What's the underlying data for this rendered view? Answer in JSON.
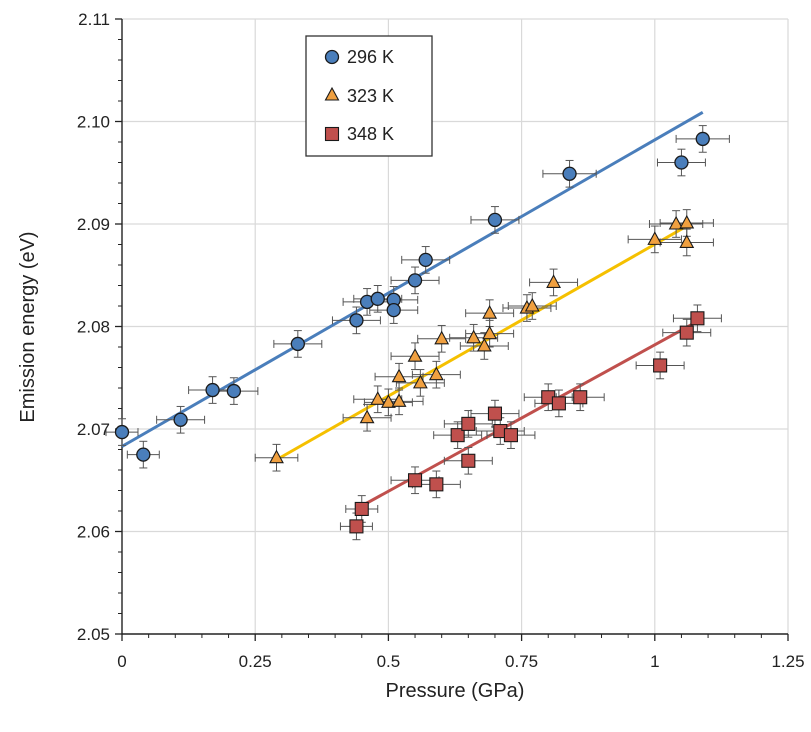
{
  "chart_data": {
    "type": "scatter",
    "title": "",
    "xlabel": "Pressure (GPa)",
    "ylabel": "Emission energy (eV)",
    "xlim": [
      0,
      1.25
    ],
    "ylim": [
      2.05,
      2.11
    ],
    "xticks": [
      0,
      0.25,
      0.5,
      0.75,
      1,
      1.25
    ],
    "xtick_labels": [
      "0",
      "0.25",
      "0.5",
      "0.75",
      "1",
      "1.25"
    ],
    "yticks": [
      2.05,
      2.06,
      2.07,
      2.08,
      2.09,
      2.1,
      2.11
    ],
    "ytick_labels": [
      "2.05",
      "2.06",
      "2.07",
      "2.08",
      "2.09",
      "2.10",
      "2.11"
    ],
    "grid": true,
    "legend": "top-left",
    "error_bars": true,
    "series": [
      {
        "name": "296 K",
        "marker": "circle",
        "color": "#4a7ebb",
        "line_color": "#4a7ebb",
        "points": [
          {
            "x": 0.0,
            "y": 2.0697,
            "xerr": 0.03,
            "yerr": 0.0013
          },
          {
            "x": 0.04,
            "y": 2.0675,
            "xerr": 0.03,
            "yerr": 0.0013
          },
          {
            "x": 0.11,
            "y": 2.0709,
            "xerr": 0.045,
            "yerr": 0.0013
          },
          {
            "x": 0.17,
            "y": 2.0738,
            "xerr": 0.045,
            "yerr": 0.0013
          },
          {
            "x": 0.21,
            "y": 2.0737,
            "xerr": 0.045,
            "yerr": 0.0013
          },
          {
            "x": 0.33,
            "y": 2.0783,
            "xerr": 0.045,
            "yerr": 0.0013
          },
          {
            "x": 0.44,
            "y": 2.0806,
            "xerr": 0.045,
            "yerr": 0.0013
          },
          {
            "x": 0.46,
            "y": 2.0824,
            "xerr": 0.045,
            "yerr": 0.0013
          },
          {
            "x": 0.48,
            "y": 2.0827,
            "xerr": 0.045,
            "yerr": 0.0013
          },
          {
            "x": 0.51,
            "y": 2.0826,
            "xerr": 0.045,
            "yerr": 0.0013
          },
          {
            "x": 0.51,
            "y": 2.0816,
            "xerr": 0.045,
            "yerr": 0.0013
          },
          {
            "x": 0.55,
            "y": 2.0845,
            "xerr": 0.045,
            "yerr": 0.0013
          },
          {
            "x": 0.57,
            "y": 2.0865,
            "xerr": 0.045,
            "yerr": 0.0013
          },
          {
            "x": 0.7,
            "y": 2.0904,
            "xerr": 0.045,
            "yerr": 0.0013
          },
          {
            "x": 0.84,
            "y": 2.0949,
            "xerr": 0.05,
            "yerr": 0.0013
          },
          {
            "x": 1.05,
            "y": 2.096,
            "xerr": 0.045,
            "yerr": 0.0013
          },
          {
            "x": 1.09,
            "y": 2.0983,
            "xerr": 0.05,
            "yerr": 0.0013
          }
        ],
        "fit": {
          "x": [
            0.0,
            1.09
          ],
          "y": [
            2.0683,
            2.1009
          ]
        }
      },
      {
        "name": "323 K",
        "marker": "triangle",
        "color": "#f0a040",
        "line_color": "#f5c000",
        "points": [
          {
            "x": 0.29,
            "y": 2.0672,
            "xerr": 0.04,
            "yerr": 0.0013
          },
          {
            "x": 0.46,
            "y": 2.0711,
            "xerr": 0.045,
            "yerr": 0.0013
          },
          {
            "x": 0.48,
            "y": 2.0729,
            "xerr": 0.045,
            "yerr": 0.0013
          },
          {
            "x": 0.5,
            "y": 2.0726,
            "xerr": 0.045,
            "yerr": 0.0013
          },
          {
            "x": 0.52,
            "y": 2.0727,
            "xerr": 0.045,
            "yerr": 0.0013
          },
          {
            "x": 0.52,
            "y": 2.0751,
            "xerr": 0.045,
            "yerr": 0.0013
          },
          {
            "x": 0.55,
            "y": 2.0771,
            "xerr": 0.045,
            "yerr": 0.0013
          },
          {
            "x": 0.56,
            "y": 2.0745,
            "xerr": 0.045,
            "yerr": 0.0013
          },
          {
            "x": 0.59,
            "y": 2.0753,
            "xerr": 0.045,
            "yerr": 0.0013
          },
          {
            "x": 0.6,
            "y": 2.0788,
            "xerr": 0.045,
            "yerr": 0.0013
          },
          {
            "x": 0.66,
            "y": 2.0789,
            "xerr": 0.045,
            "yerr": 0.0013
          },
          {
            "x": 0.68,
            "y": 2.0781,
            "xerr": 0.045,
            "yerr": 0.0013
          },
          {
            "x": 0.69,
            "y": 2.0813,
            "xerr": 0.045,
            "yerr": 0.0013
          },
          {
            "x": 0.69,
            "y": 2.0793,
            "xerr": 0.045,
            "yerr": 0.0013
          },
          {
            "x": 0.76,
            "y": 2.0818,
            "xerr": 0.045,
            "yerr": 0.0013
          },
          {
            "x": 0.77,
            "y": 2.082,
            "xerr": 0.045,
            "yerr": 0.0013
          },
          {
            "x": 0.81,
            "y": 2.0843,
            "xerr": 0.045,
            "yerr": 0.0013
          },
          {
            "x": 1.0,
            "y": 2.0885,
            "xerr": 0.05,
            "yerr": 0.0013
          },
          {
            "x": 1.04,
            "y": 2.09,
            "xerr": 0.05,
            "yerr": 0.0013
          },
          {
            "x": 1.06,
            "y": 2.0901,
            "xerr": 0.05,
            "yerr": 0.0013
          },
          {
            "x": 1.06,
            "y": 2.0882,
            "xerr": 0.05,
            "yerr": 0.0013
          }
        ],
        "fit": {
          "x": [
            0.29,
            1.06
          ],
          "y": [
            2.067,
            2.0898
          ]
        }
      },
      {
        "name": "348 K",
        "marker": "square",
        "color": "#c0504d",
        "line_color": "#c0504d",
        "points": [
          {
            "x": 0.44,
            "y": 2.0605,
            "xerr": 0.03,
            "yerr": 0.0013
          },
          {
            "x": 0.45,
            "y": 2.0622,
            "xerr": 0.03,
            "yerr": 0.0013
          },
          {
            "x": 0.55,
            "y": 2.065,
            "xerr": 0.045,
            "yerr": 0.0013
          },
          {
            "x": 0.59,
            "y": 2.0646,
            "xerr": 0.045,
            "yerr": 0.0013
          },
          {
            "x": 0.63,
            "y": 2.0694,
            "xerr": 0.045,
            "yerr": 0.0013
          },
          {
            "x": 0.65,
            "y": 2.0705,
            "xerr": 0.045,
            "yerr": 0.0013
          },
          {
            "x": 0.65,
            "y": 2.0669,
            "xerr": 0.045,
            "yerr": 0.0013
          },
          {
            "x": 0.7,
            "y": 2.0715,
            "xerr": 0.045,
            "yerr": 0.0013
          },
          {
            "x": 0.71,
            "y": 2.0698,
            "xerr": 0.045,
            "yerr": 0.0013
          },
          {
            "x": 0.73,
            "y": 2.0694,
            "xerr": 0.045,
            "yerr": 0.0013
          },
          {
            "x": 0.8,
            "y": 2.0731,
            "xerr": 0.045,
            "yerr": 0.0013
          },
          {
            "x": 0.82,
            "y": 2.0725,
            "xerr": 0.045,
            "yerr": 0.0013
          },
          {
            "x": 0.86,
            "y": 2.0731,
            "xerr": 0.045,
            "yerr": 0.0013
          },
          {
            "x": 1.01,
            "y": 2.0762,
            "xerr": 0.045,
            "yerr": 0.0013
          },
          {
            "x": 1.06,
            "y": 2.0794,
            "xerr": 0.045,
            "yerr": 0.0013
          },
          {
            "x": 1.08,
            "y": 2.0808,
            "xerr": 0.045,
            "yerr": 0.0013
          }
        ],
        "fit": {
          "x": [
            0.45,
            1.08
          ],
          "y": [
            2.0625,
            2.0805
          ]
        }
      }
    ]
  }
}
